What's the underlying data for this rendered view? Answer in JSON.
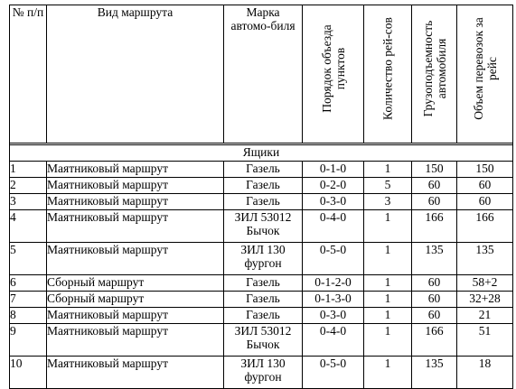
{
  "headers": {
    "num": "№ п/п",
    "route_type": "Вид маршрута",
    "vehicle": "Марка автомо-биля",
    "order": "Порядок объезда пунктов",
    "trips": "Количество рей-сов",
    "capacity": "Грузоподъемность автомобиля",
    "volume": "Объем перевозок за рейс"
  },
  "section": "Ящики",
  "rows": [
    {
      "num": "1",
      "route": "Маятниковый маршрут",
      "vehicle": [
        "Газель"
      ],
      "order": "0-1-0",
      "trips": "1",
      "capacity": "150",
      "volume": "150"
    },
    {
      "num": "2",
      "route": "Маятниковый маршрут",
      "vehicle": [
        "Газель"
      ],
      "order": "0-2-0",
      "trips": "5",
      "capacity": "60",
      "volume": "60"
    },
    {
      "num": "3",
      "route": "Маятниковый маршрут",
      "vehicle": [
        "Газель"
      ],
      "order": "0-3-0",
      "trips": "3",
      "capacity": "60",
      "volume": "60"
    },
    {
      "num": "4",
      "route": "Маятниковый маршрут",
      "vehicle": [
        "ЗИЛ 53012",
        "Бычок"
      ],
      "order": "0-4-0",
      "trips": "1",
      "capacity": "166",
      "volume": "166"
    },
    {
      "num": "5",
      "route": "Маятниковый маршрут",
      "vehicle": [
        "ЗИЛ 130",
        "фургон"
      ],
      "order": "0-5-0",
      "trips": "1",
      "capacity": "135",
      "volume": "135"
    },
    {
      "num": "6",
      "route": "Сборный маршрут",
      "vehicle": [
        "Газель"
      ],
      "order": "0-1-2-0",
      "trips": "1",
      "capacity": "60",
      "volume": "58+2"
    },
    {
      "num": "7",
      "route": "Сборный маршрут",
      "vehicle": [
        "Газель"
      ],
      "order": "0-1-3-0",
      "trips": "1",
      "capacity": "60",
      "volume": "32+28"
    },
    {
      "num": "8",
      "route": "Маятниковый маршрут",
      "vehicle": [
        "Газель"
      ],
      "order": "0-3-0",
      "trips": "1",
      "capacity": "60",
      "volume": "21"
    },
    {
      "num": "9",
      "route": "Маятниковый маршрут",
      "vehicle": [
        "ЗИЛ 53012",
        "Бычок"
      ],
      "order": "0-4-0",
      "trips": "1",
      "capacity": "166",
      "volume": "51"
    },
    {
      "num": "10",
      "route": "Маятниковый маршрут",
      "vehicle": [
        "ЗИЛ 130",
        "фургон"
      ],
      "order": "0-5-0",
      "trips": "1",
      "capacity": "135",
      "volume": "18"
    }
  ]
}
